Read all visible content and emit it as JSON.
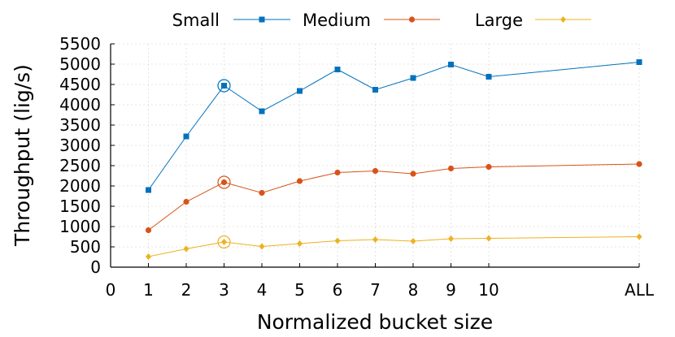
{
  "chart_data": {
    "type": "line",
    "title": "",
    "xlabel": "Normalized bucket size",
    "ylabel": "Throughput (lig/s)",
    "categories": [
      "1",
      "2",
      "3",
      "4",
      "5",
      "6",
      "7",
      "8",
      "9",
      "10",
      "ALL"
    ],
    "x_ticks": [
      "0",
      "1",
      "2",
      "3",
      "4",
      "5",
      "6",
      "7",
      "8",
      "9",
      "10",
      "ALL"
    ],
    "y_ticks": [
      "0",
      "500",
      "1000",
      "1500",
      "2000",
      "2500",
      "3000",
      "3500",
      "4000",
      "4500",
      "5000",
      "5500"
    ],
    "ylim": [
      0,
      5500
    ],
    "grid": true,
    "legend_position": "top",
    "highlighted_category": "3",
    "series": [
      {
        "name": "Small",
        "color": "#0072bd",
        "marker": "square",
        "values": [
          1900,
          3220,
          4470,
          3840,
          4340,
          4870,
          4370,
          4660,
          4990,
          4690,
          5050
        ]
      },
      {
        "name": "Medium",
        "color": "#d95319",
        "marker": "circle",
        "values": [
          910,
          1610,
          2090,
          1830,
          2120,
          2330,
          2370,
          2300,
          2430,
          2470,
          2540
        ]
      },
      {
        "name": "Large",
        "color": "#edb120",
        "marker": "diamond",
        "values": [
          260,
          450,
          620,
          510,
          580,
          650,
          680,
          640,
          700,
          710,
          750
        ]
      }
    ]
  }
}
